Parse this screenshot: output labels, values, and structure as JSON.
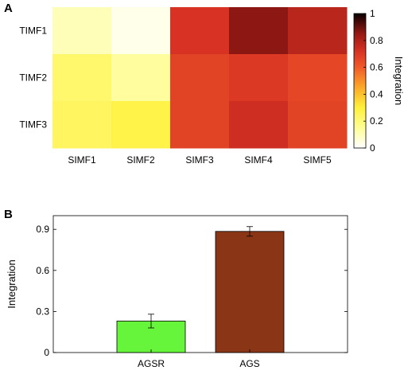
{
  "panels": {
    "a_label": "A",
    "b_label": "B"
  },
  "chart_data": [
    {
      "type": "heatmap",
      "panel": "A",
      "x_categories": [
        "SIMF1",
        "SIMF2",
        "SIMF3",
        "SIMF4",
        "SIMF5"
      ],
      "y_categories": [
        "TIMF1",
        "TIMF2",
        "TIMF3"
      ],
      "values": [
        [
          0.1,
          0.03,
          0.72,
          0.86,
          0.78
        ],
        [
          0.22,
          0.14,
          0.67,
          0.7,
          0.66
        ],
        [
          0.24,
          0.28,
          0.67,
          0.74,
          0.67
        ]
      ],
      "colorbar": {
        "label": "Integration",
        "range": [
          0,
          1
        ],
        "ticks": [
          "0",
          "0.2",
          "0.4",
          "0.6",
          "0.8",
          "1"
        ],
        "colormap": "hot (reversed)"
      }
    },
    {
      "type": "bar",
      "panel": "B",
      "categories": [
        "AGSR",
        "AGS"
      ],
      "values": [
        0.23,
        0.885
      ],
      "error": [
        0.05,
        0.035
      ],
      "colors": [
        "#66f53a",
        "#8b3517"
      ],
      "ylabel": "Integration",
      "ylim": [
        0,
        1.0
      ],
      "yticks": [
        "0",
        "0.3",
        "0.6",
        "0.9"
      ],
      "grid": false
    }
  ]
}
